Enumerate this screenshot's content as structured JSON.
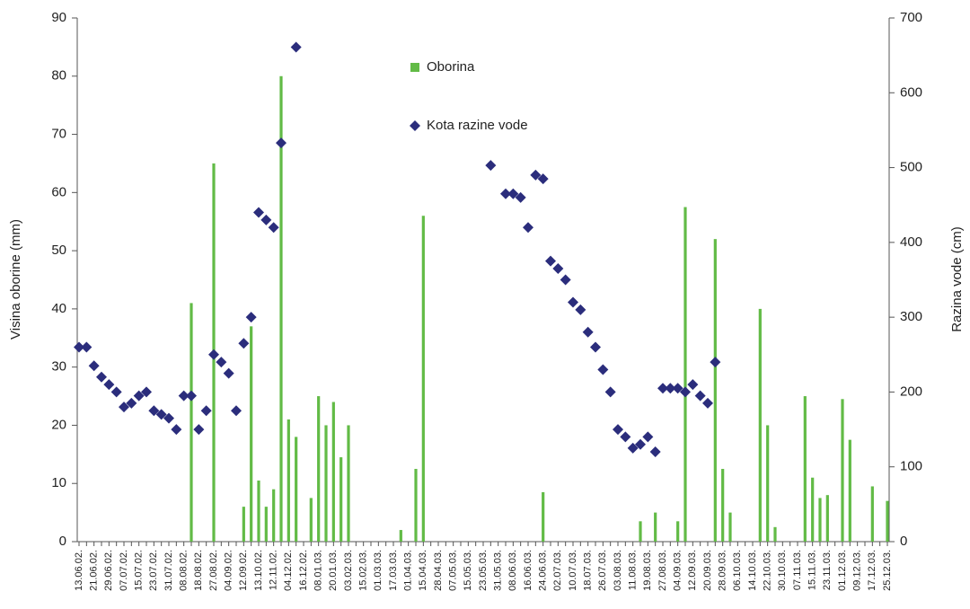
{
  "chart_data": {
    "type": "combo",
    "categories": [
      "13.06.02.",
      null,
      "21.06.02.",
      null,
      "29.06.02.",
      null,
      "07.07.02.",
      null,
      "15.07.02.",
      null,
      "23.07.02.",
      null,
      "31.07.02.",
      null,
      "08.08.02.",
      null,
      "18.08.02.",
      null,
      "27.08.02.",
      null,
      "04.09.02.",
      null,
      "12.09.02.",
      null,
      "13.10.02.",
      null,
      "12.11.02.",
      null,
      "04.12.02.",
      null,
      "16.12.02.",
      null,
      "08.01.03.",
      null,
      "20.01.03.",
      null,
      "03.02.03.",
      null,
      "15.02.03.",
      null,
      "01.03.03.",
      null,
      "17.03.03.",
      null,
      "01.04.03.",
      null,
      "15.04.03.",
      null,
      "28.04.03.",
      null,
      "07.05.03.",
      null,
      "15.05.03.",
      null,
      "23.05.03.",
      null,
      "31.05.03.",
      null,
      "08.06.03.",
      null,
      "16.06.03.",
      null,
      "24.06.03.",
      null,
      "02.07.03.",
      null,
      "10.07.03.",
      null,
      "18.07.03.",
      null,
      "26.07.03.",
      null,
      "03.08.03.",
      null,
      "11.08.03.",
      null,
      "19.08.03.",
      null,
      "27.08.03.",
      null,
      "04.09.03.",
      null,
      "12.09.03.",
      null,
      "20.09.03.",
      null,
      "28.09.03.",
      null,
      "06.10.03.",
      null,
      "14.10.03.",
      null,
      "22.10.03.",
      null,
      "30.10.03.",
      null,
      "07.11.03.",
      null,
      "15.11.03.",
      null,
      "23.11.03.",
      null,
      "01.12.03.",
      null,
      "09.12.03.",
      null,
      "17.12.03.",
      null,
      "25.12.03."
    ],
    "series": [
      {
        "name": "Oborina",
        "type": "bar",
        "color": "#62bb46",
        "axis": "y",
        "values": [
          0,
          0,
          0,
          0,
          0,
          0,
          0,
          0,
          0,
          0,
          0,
          0,
          0,
          0,
          0,
          41,
          0,
          0,
          65,
          0,
          0,
          0,
          6,
          37,
          10.5,
          6,
          9,
          80,
          21,
          18,
          0,
          7.5,
          25,
          20,
          24,
          14.5,
          20,
          0,
          0,
          0,
          0,
          0,
          0,
          2,
          0,
          12.5,
          56,
          0,
          0,
          0,
          0,
          0,
          0,
          0,
          0,
          0,
          0,
          0,
          0,
          0,
          0,
          0,
          8.5,
          0,
          0,
          0,
          0,
          0,
          0,
          0,
          0,
          0,
          0,
          0,
          0,
          3.5,
          0,
          5,
          0,
          0,
          3.5,
          57.5,
          0,
          0,
          0,
          52,
          12.5,
          5,
          0,
          0,
          0,
          40,
          20,
          2.5,
          0,
          0,
          0,
          25,
          11,
          7.5,
          8,
          0,
          24.5,
          17.5,
          0,
          0,
          9.5,
          0,
          7
        ]
      },
      {
        "name": "Kota razine vode",
        "type": "scatter",
        "color": "#2b2d7c",
        "axis": "y2",
        "values": [
          260,
          260,
          235,
          220,
          210,
          200,
          180,
          185,
          195,
          200,
          175,
          170,
          165,
          150,
          195,
          195,
          150,
          175,
          250,
          240,
          225,
          175,
          265,
          300,
          440,
          430,
          420,
          533,
          null,
          661,
          null,
          null,
          null,
          null,
          null,
          null,
          null,
          null,
          null,
          null,
          null,
          null,
          null,
          null,
          null,
          null,
          null,
          null,
          null,
          null,
          null,
          null,
          null,
          null,
          null,
          503,
          null,
          465,
          465,
          460,
          420,
          490,
          485,
          375,
          365,
          350,
          320,
          310,
          280,
          260,
          230,
          200,
          150,
          140,
          125,
          130,
          140,
          120,
          205,
          205,
          205,
          200,
          210,
          195,
          185,
          240,
          null,
          null,
          null,
          null,
          null,
          null,
          null,
          null,
          null,
          null,
          null,
          null,
          null,
          null,
          null,
          null,
          null,
          null,
          null,
          null,
          null,
          null,
          null
        ]
      }
    ],
    "y_label": "Visina oborine (mm)",
    "y2_label": "Razina vode (cm)",
    "ylim": [
      0,
      90
    ],
    "yticks": [
      0,
      10,
      20,
      30,
      40,
      50,
      60,
      70,
      80,
      90
    ],
    "y2lim": [
      0,
      700
    ],
    "y2ticks": [
      0,
      100,
      200,
      300,
      400,
      500,
      600,
      700
    ],
    "grid": false
  }
}
